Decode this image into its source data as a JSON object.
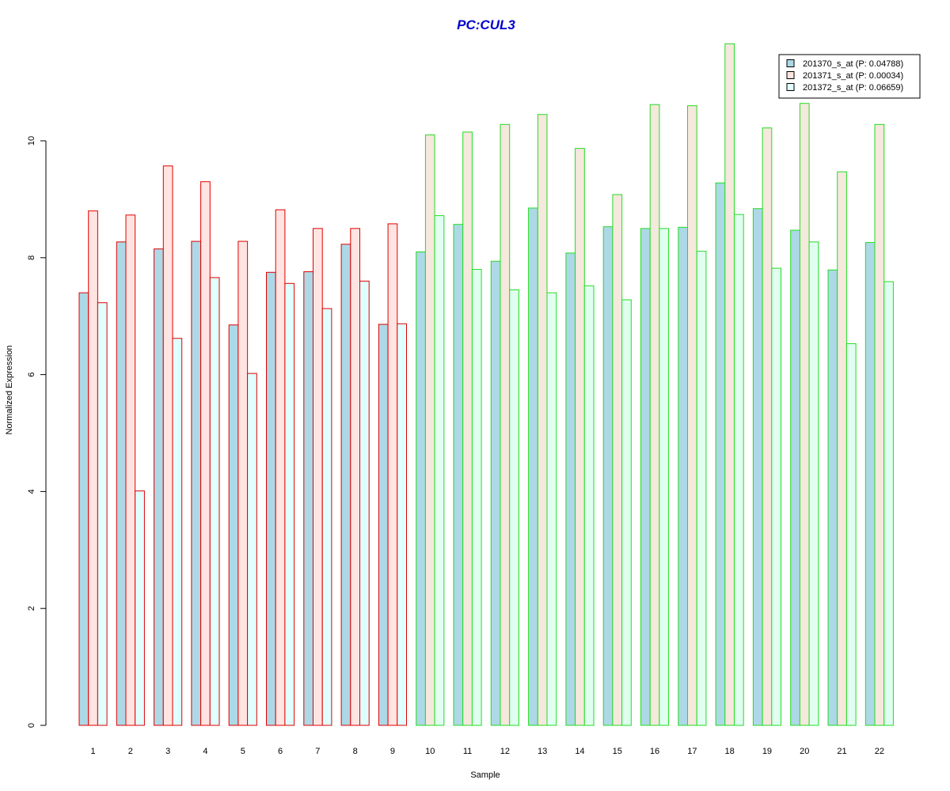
{
  "chart_data": {
    "type": "bar",
    "title": "PC:CUL3",
    "title_color": "#0000cd",
    "xlabel": "Sample",
    "ylabel": "Normalized Expression",
    "ylim": [
      0,
      11.6
    ],
    "yticks": [
      "0",
      "2",
      "4",
      "6",
      "8",
      "10"
    ],
    "grid": false,
    "legend_position": "top-right",
    "categories": [
      "1",
      "2",
      "3",
      "4",
      "5",
      "6",
      "7",
      "8",
      "9",
      "10",
      "11",
      "12",
      "13",
      "14",
      "15",
      "16",
      "17",
      "18",
      "19",
      "20",
      "21",
      "22"
    ],
    "groups": [
      {
        "samples": [
          "1",
          "2",
          "3",
          "4",
          "5",
          "6",
          "7",
          "8",
          "9"
        ],
        "border_color": "#e00000"
      },
      {
        "samples": [
          "10",
          "11",
          "12",
          "13",
          "14",
          "15",
          "16",
          "17",
          "18",
          "19",
          "20",
          "21",
          "22"
        ],
        "border_color": "#22dd22"
      }
    ],
    "series": [
      {
        "name": "201370_s_at (P: 0.04788)",
        "fill": "#add8e6",
        "values": [
          7.4,
          8.27,
          8.15,
          8.28,
          6.85,
          7.75,
          7.76,
          8.23,
          6.86,
          8.1,
          8.57,
          7.94,
          8.85,
          8.08,
          8.53,
          8.5,
          8.52,
          9.28,
          8.84,
          8.47,
          7.79,
          8.26
        ]
      },
      {
        "name": "201371_s_at (P: 0.00034)",
        "fill_group1": "#ffe4e1",
        "fill_group2": "#f5e8dc",
        "values": [
          8.8,
          8.73,
          9.57,
          9.3,
          8.28,
          8.82,
          8.5,
          8.5,
          8.58,
          10.1,
          10.15,
          10.28,
          10.45,
          9.87,
          9.08,
          10.62,
          10.6,
          11.66,
          10.22,
          10.64,
          9.47,
          10.28
        ]
      },
      {
        "name": "201372_s_at (P: 0.06659)",
        "fill_group1": "#e0ffff",
        "fill_group2": "#e0fff0",
        "values": [
          7.23,
          4.01,
          6.62,
          7.66,
          6.02,
          7.56,
          7.13,
          7.6,
          6.87,
          8.72,
          7.8,
          7.45,
          7.4,
          7.52,
          7.28,
          8.5,
          8.11,
          8.74,
          7.82,
          8.27,
          6.53,
          7.59
        ]
      }
    ]
  }
}
